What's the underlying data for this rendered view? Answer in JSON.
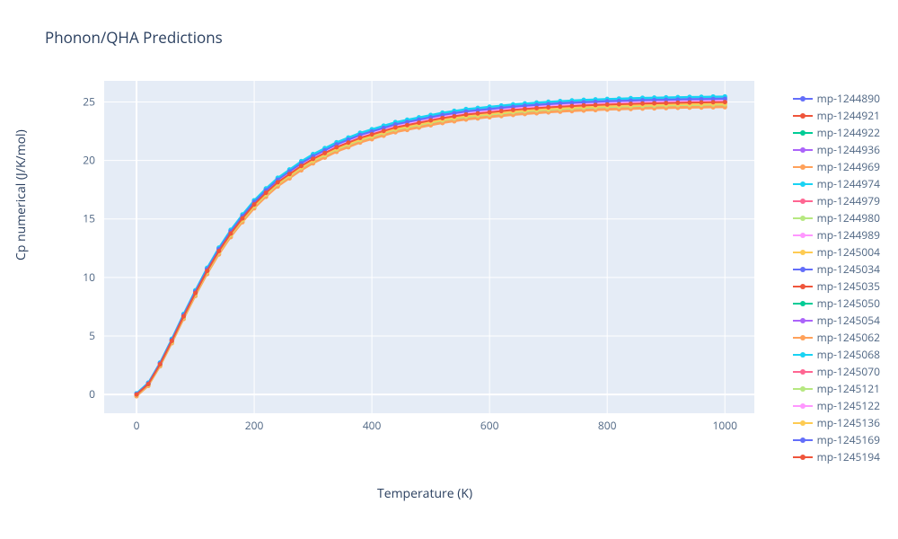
{
  "title": "Phonon/QHA Predictions",
  "xlabel": "Temperature (K)",
  "ylabel": "Cp numerical (J/K/mol)",
  "chart": {
    "type": "line",
    "background_color": "#ffffff",
    "plot_bgcolor": "#e5ecf6",
    "grid_color": "#ffffff",
    "zeroline_color": "#ffffff",
    "tick_color": "#506784",
    "tick_fontsize": 12,
    "title_fontsize": 17,
    "label_fontsize": 14,
    "xlim": [
      -55,
      1050
    ],
    "ylim": [
      -1.6,
      26.8
    ],
    "xticks": [
      0,
      200,
      400,
      600,
      800,
      1000
    ],
    "yticks": [
      0,
      5,
      10,
      15,
      20,
      25
    ],
    "line_width": 2,
    "marker_size": 5,
    "marker_style": "circle",
    "x": [
      0,
      20,
      40,
      60,
      80,
      100,
      120,
      140,
      160,
      180,
      200,
      220,
      240,
      260,
      280,
      300,
      320,
      340,
      360,
      380,
      400,
      420,
      440,
      460,
      480,
      500,
      520,
      540,
      560,
      580,
      600,
      620,
      640,
      660,
      680,
      700,
      720,
      740,
      760,
      780,
      800,
      820,
      840,
      860,
      880,
      900,
      920,
      940,
      960,
      980,
      1000
    ],
    "series": [
      {
        "name": "mp-1244890",
        "color": "#636efa",
        "y_scale": 1.005,
        "y_shift": 0.05
      },
      {
        "name": "mp-1244921",
        "color": "#ef553b",
        "y_scale": 0.998,
        "y_shift": 0.0
      },
      {
        "name": "mp-1244922",
        "color": "#00cc96",
        "y_scale": 1.0,
        "y_shift": 0.02
      },
      {
        "name": "mp-1244936",
        "color": "#ab63fa",
        "y_scale": 1.01,
        "y_shift": 0.08
      },
      {
        "name": "mp-1244969",
        "color": "#ffa15a",
        "y_scale": 0.985,
        "y_shift": -0.15
      },
      {
        "name": "mp-1244974",
        "color": "#19d3f3",
        "y_scale": 1.012,
        "y_shift": 0.1
      },
      {
        "name": "mp-1244979",
        "color": "#ff6692",
        "y_scale": 1.002,
        "y_shift": 0.02
      },
      {
        "name": "mp-1244980",
        "color": "#b6e880",
        "y_scale": 0.99,
        "y_shift": -0.08
      },
      {
        "name": "mp-1244989",
        "color": "#ff97ff",
        "y_scale": 1.003,
        "y_shift": 0.02
      },
      {
        "name": "mp-1245004",
        "color": "#fecb52",
        "y_scale": 0.992,
        "y_shift": -0.05
      },
      {
        "name": "mp-1245034",
        "color": "#636efa",
        "y_scale": 1.004,
        "y_shift": 0.03
      },
      {
        "name": "mp-1245035",
        "color": "#ef553b",
        "y_scale": 0.996,
        "y_shift": -0.02
      },
      {
        "name": "mp-1245050",
        "color": "#00cc96",
        "y_scale": 1.001,
        "y_shift": 0.01
      },
      {
        "name": "mp-1245054",
        "color": "#ab63fa",
        "y_scale": 1.009,
        "y_shift": 0.07
      },
      {
        "name": "mp-1245062",
        "color": "#ffa15a",
        "y_scale": 0.987,
        "y_shift": -0.12
      },
      {
        "name": "mp-1245068",
        "color": "#19d3f3",
        "y_scale": 1.011,
        "y_shift": 0.09
      },
      {
        "name": "mp-1245070",
        "color": "#ff6692",
        "y_scale": 1.0,
        "y_shift": 0.0
      },
      {
        "name": "mp-1245121",
        "color": "#b6e880",
        "y_scale": 0.991,
        "y_shift": -0.06
      },
      {
        "name": "mp-1245122",
        "color": "#ff97ff",
        "y_scale": 1.002,
        "y_shift": 0.01
      },
      {
        "name": "mp-1245136",
        "color": "#fecb52",
        "y_scale": 0.993,
        "y_shift": -0.04
      },
      {
        "name": "mp-1245169",
        "color": "#636efa",
        "y_scale": 1.006,
        "y_shift": 0.04
      },
      {
        "name": "mp-1245194",
        "color": "#ef553b",
        "y_scale": 0.997,
        "y_shift": -0.01
      }
    ],
    "base_curve": [
      0.0,
      0.9,
      2.6,
      4.6,
      6.7,
      8.7,
      10.6,
      12.3,
      13.8,
      15.1,
      16.3,
      17.3,
      18.2,
      18.9,
      19.6,
      20.2,
      20.7,
      21.2,
      21.6,
      22.0,
      22.3,
      22.6,
      22.9,
      23.1,
      23.3,
      23.5,
      23.7,
      23.85,
      24.0,
      24.1,
      24.2,
      24.3,
      24.4,
      24.48,
      24.55,
      24.62,
      24.68,
      24.73,
      24.78,
      24.82,
      24.86,
      24.89,
      24.92,
      24.95,
      24.97,
      24.99,
      25.01,
      25.03,
      25.04,
      25.06,
      25.07
    ]
  },
  "legend": {
    "fontsize": 12,
    "text_color": "#506784",
    "item_height": 19,
    "swatch_line_width": 2,
    "swatch_dot_size": 6
  }
}
